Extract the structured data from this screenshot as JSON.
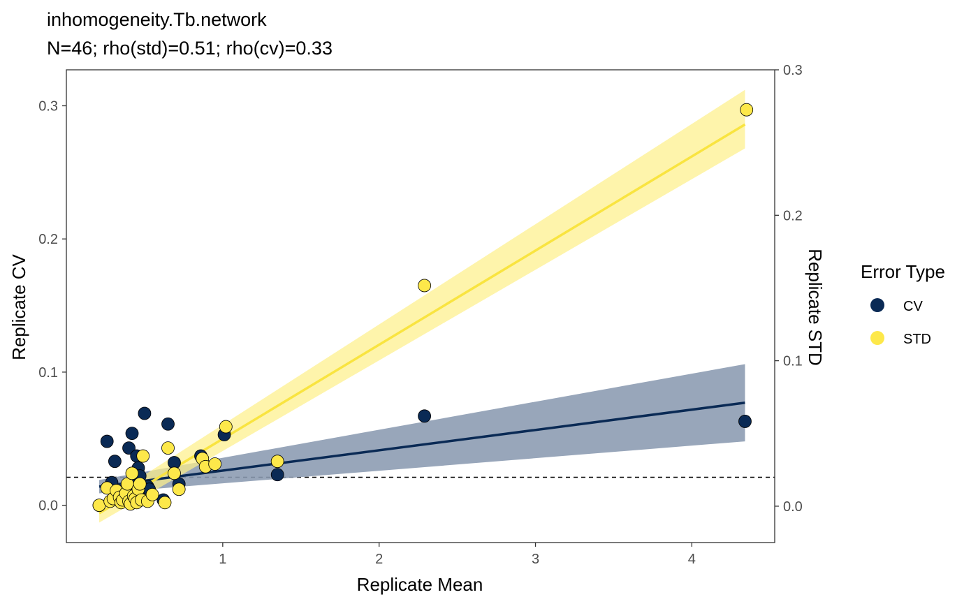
{
  "chart_data": {
    "type": "scatter",
    "title": "inhomogeneity.Tb.network",
    "subtitle": "N=46; rho(std)=0.51; rho(cv)=0.33",
    "xlabel": "Replicate Mean",
    "ylabel": "Replicate CV",
    "y2label": "Replicate STD",
    "xlim": [
      0.0,
      4.53
    ],
    "ylim": [
      -0.028,
      0.327
    ],
    "y2lim": [
      -0.025,
      0.3
    ],
    "x_ticks": [
      1,
      2,
      3,
      4
    ],
    "y_ticks": [
      0.0,
      0.1,
      0.2,
      0.3
    ],
    "y_tick_labels": [
      "0.0",
      "0.1",
      "0.2",
      "0.3"
    ],
    "y2_ticks": [
      0.0,
      0.1,
      0.2,
      0.3
    ],
    "y2_tick_labels": [
      "0.0",
      "0.1",
      "0.2",
      "0.3"
    ],
    "reference_line": {
      "y": 0.021,
      "style": "dashed"
    },
    "grid": false,
    "legend": {
      "title": "Error Type",
      "position": "right"
    },
    "series": [
      {
        "name": "CV",
        "color": "#0a2a55",
        "points": [
          [
            0.21,
            0.0
          ],
          [
            0.26,
            0.048
          ],
          [
            0.29,
            0.017
          ],
          [
            0.31,
            0.033
          ],
          [
            0.33,
            0.01
          ],
          [
            0.35,
            0.005
          ],
          [
            0.38,
            0.012
          ],
          [
            0.4,
            0.043
          ],
          [
            0.42,
            0.054
          ],
          [
            0.43,
            0.008
          ],
          [
            0.44,
            0.018
          ],
          [
            0.45,
            0.037
          ],
          [
            0.46,
            0.028
          ],
          [
            0.47,
            0.022
          ],
          [
            0.48,
            0.013
          ],
          [
            0.5,
            0.069
          ],
          [
            0.52,
            0.014
          ],
          [
            0.53,
            0.012
          ],
          [
            0.62,
            0.004
          ],
          [
            0.65,
            0.061
          ],
          [
            0.69,
            0.032
          ],
          [
            0.72,
            0.016
          ],
          [
            0.86,
            0.037
          ],
          [
            1.01,
            0.053
          ],
          [
            1.35,
            0.023
          ],
          [
            2.29,
            0.067
          ],
          [
            4.34,
            0.063
          ]
        ],
        "fit": {
          "x": [
            0.21,
            4.34
          ],
          "y": [
            0.014,
            0.077
          ],
          "lower": [
            0.009,
            0.048
          ],
          "upper": [
            0.019,
            0.106
          ]
        }
      },
      {
        "name": "STD",
        "color": "#fde84a",
        "points": [
          [
            0.21,
            0.0
          ],
          [
            0.26,
            0.013
          ],
          [
            0.28,
            0.003
          ],
          [
            0.3,
            0.005
          ],
          [
            0.32,
            0.011
          ],
          [
            0.34,
            0.006
          ],
          [
            0.35,
            0.002
          ],
          [
            0.36,
            0.004
          ],
          [
            0.38,
            0.009
          ],
          [
            0.39,
            0.016
          ],
          [
            0.4,
            0.003
          ],
          [
            0.41,
            0.001
          ],
          [
            0.42,
            0.024
          ],
          [
            0.43,
            0.007
          ],
          [
            0.44,
            0.005
          ],
          [
            0.45,
            0.002
          ],
          [
            0.46,
            0.012
          ],
          [
            0.47,
            0.016
          ],
          [
            0.48,
            0.004
          ],
          [
            0.49,
            0.037
          ],
          [
            0.52,
            0.003
          ],
          [
            0.55,
            0.008
          ],
          [
            0.63,
            0.002
          ],
          [
            0.65,
            0.043
          ],
          [
            0.69,
            0.024
          ],
          [
            0.72,
            0.012
          ],
          [
            0.87,
            0.035
          ],
          [
            0.89,
            0.029
          ],
          [
            0.95,
            0.031
          ],
          [
            1.02,
            0.059
          ],
          [
            1.35,
            0.033
          ],
          [
            2.29,
            0.165
          ],
          [
            4.35,
            0.297
          ]
        ],
        "fit": {
          "x": [
            0.21,
            4.34
          ],
          "y": [
            -0.006,
            0.286
          ],
          "lower": [
            -0.013,
            0.268
          ],
          "upper": [
            0.001,
            0.312
          ]
        }
      }
    ]
  }
}
